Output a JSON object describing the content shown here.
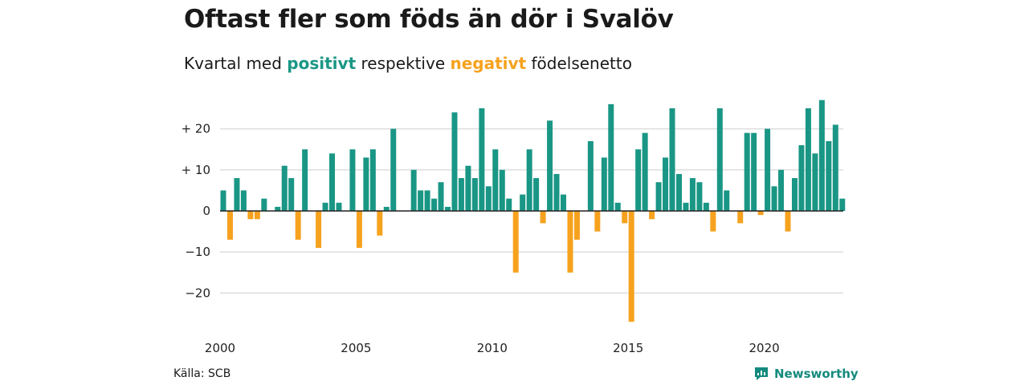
{
  "header": {
    "title": "Oftast fler som föds än dör i Svalöv",
    "subtitle_prefix": "Kvartal med",
    "subtitle_positive": "positivt",
    "subtitle_middle": "respektive",
    "subtitle_negative": "negativt",
    "subtitle_suffix": "födelsenetto"
  },
  "footer": {
    "source": "Källa: SCB",
    "brand": "Newsworthy"
  },
  "colors": {
    "positive": "#1a9685",
    "negative": "#f6a21e",
    "grid": "#dedede",
    "zero_line": "#222222",
    "brand": "#138a7d"
  },
  "chart_data": {
    "type": "bar",
    "x_start_year": 2000,
    "x_frequency": "quarter",
    "x_ticks": [
      2000,
      2005,
      2010,
      2015,
      2020
    ],
    "y_ticks": [
      20,
      10,
      0,
      -10,
      -20
    ],
    "y_tick_labels": [
      "+ 20",
      "+ 10",
      "0",
      "−10",
      "−20"
    ],
    "ylim": [
      -28,
      28
    ],
    "grid": true,
    "values": [
      5,
      -7,
      8,
      5,
      -2,
      -2,
      3,
      0,
      1,
      11,
      8,
      -7,
      15,
      0,
      -9,
      2,
      14,
      2,
      0,
      15,
      -9,
      13,
      15,
      -6,
      1,
      20,
      0,
      0,
      10,
      5,
      5,
      3,
      7,
      1,
      24,
      8,
      11,
      8,
      25,
      6,
      15,
      10,
      3,
      -15,
      4,
      15,
      8,
      -3,
      22,
      9,
      4,
      -15,
      -7,
      0,
      17,
      -5,
      13,
      26,
      2,
      -3,
      -27,
      15,
      19,
      -2,
      7,
      13,
      25,
      9,
      2,
      8,
      7,
      2,
      -5,
      25,
      5,
      0,
      -3,
      19,
      19,
      -1,
      20,
      6,
      10,
      -5,
      8,
      16,
      25,
      14,
      27,
      17,
      21,
      3
    ]
  }
}
